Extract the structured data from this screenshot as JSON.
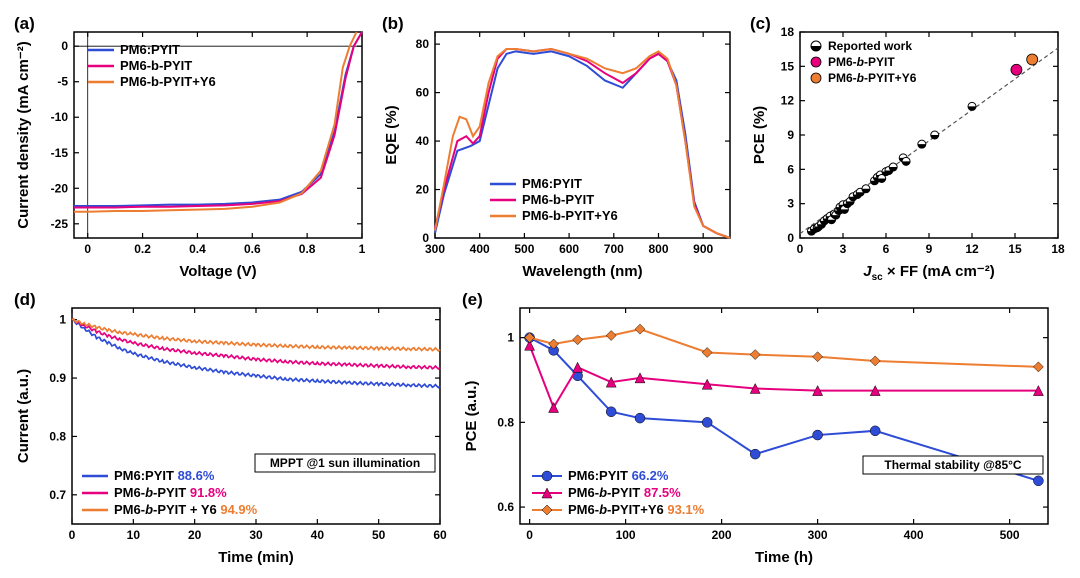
{
  "colors": {
    "s1": "#2E4CD6",
    "s2": "#E6007E",
    "s3": "#ED7D31",
    "axis": "#000000",
    "tick": "#000000",
    "text": "#000000",
    "reported": "#000000",
    "bg": "#ffffff"
  },
  "font": {
    "tick_size": 12,
    "label_size": 15,
    "legend_size": 13,
    "panel_label_size": 17,
    "weight_axis": "bold"
  },
  "panelA": {
    "label": "(a)",
    "type": "line",
    "xlabel": "Voltage (V)",
    "ylabel": "Current density (mA cm⁻²)",
    "xlim": [
      -0.05,
      1.0
    ],
    "ylim": [
      -27,
      2
    ],
    "xtick_step": 0.2,
    "xtick_start": 0.0,
    "ytick_step": 5,
    "ytick_start": -25,
    "series": [
      {
        "name": "PM6:PYIT",
        "color": "#2E4CD6",
        "pts": [
          [
            -0.05,
            -22.5
          ],
          [
            0.0,
            -22.5
          ],
          [
            0.1,
            -22.5
          ],
          [
            0.2,
            -22.4
          ],
          [
            0.3,
            -22.3
          ],
          [
            0.4,
            -22.3
          ],
          [
            0.5,
            -22.2
          ],
          [
            0.6,
            -22.0
          ],
          [
            0.7,
            -21.6
          ],
          [
            0.78,
            -20.5
          ],
          [
            0.85,
            -18.0
          ],
          [
            0.9,
            -12.0
          ],
          [
            0.94,
            -4.0
          ],
          [
            0.97,
            0
          ],
          [
            1.0,
            2
          ]
        ]
      },
      {
        "name": "PM6-b-PYIT",
        "color": "#E6007E",
        "pts": [
          [
            -0.05,
            -22.7
          ],
          [
            0.0,
            -22.7
          ],
          [
            0.1,
            -22.7
          ],
          [
            0.2,
            -22.6
          ],
          [
            0.3,
            -22.6
          ],
          [
            0.4,
            -22.5
          ],
          [
            0.5,
            -22.4
          ],
          [
            0.6,
            -22.2
          ],
          [
            0.7,
            -21.8
          ],
          [
            0.78,
            -20.8
          ],
          [
            0.85,
            -18.5
          ],
          [
            0.9,
            -12.5
          ],
          [
            0.94,
            -4.5
          ],
          [
            0.97,
            0
          ],
          [
            1.0,
            2
          ]
        ]
      },
      {
        "name": "PM6-b-PYIT+Y6",
        "color": "#ED7D31",
        "pts": [
          [
            -0.05,
            -23.3
          ],
          [
            0.0,
            -23.3
          ],
          [
            0.1,
            -23.2
          ],
          [
            0.2,
            -23.2
          ],
          [
            0.3,
            -23.1
          ],
          [
            0.4,
            -23.0
          ],
          [
            0.5,
            -22.9
          ],
          [
            0.6,
            -22.6
          ],
          [
            0.7,
            -22.0
          ],
          [
            0.78,
            -20.7
          ],
          [
            0.85,
            -17.5
          ],
          [
            0.9,
            -11.0
          ],
          [
            0.93,
            -3.0
          ],
          [
            0.955,
            0
          ],
          [
            0.98,
            2
          ]
        ]
      }
    ],
    "legend_pos": "top-left"
  },
  "panelB": {
    "label": "(b)",
    "type": "line",
    "xlabel": "Wavelength (nm)",
    "ylabel": "EQE (%)",
    "xlim": [
      300,
      960
    ],
    "ylim": [
      0,
      85
    ],
    "xtick_step": 100,
    "xtick_start": 300,
    "ytick_step": 20,
    "ytick_start": 0,
    "series": [
      {
        "name": "PM6:PYIT",
        "color": "#2E4CD6",
        "pts": [
          [
            300,
            2
          ],
          [
            320,
            18
          ],
          [
            350,
            36
          ],
          [
            380,
            38
          ],
          [
            400,
            40
          ],
          [
            420,
            55
          ],
          [
            440,
            70
          ],
          [
            460,
            76
          ],
          [
            480,
            77
          ],
          [
            520,
            76
          ],
          [
            560,
            77
          ],
          [
            600,
            75
          ],
          [
            640,
            71
          ],
          [
            680,
            65
          ],
          [
            720,
            62
          ],
          [
            750,
            68
          ],
          [
            780,
            74
          ],
          [
            800,
            76
          ],
          [
            820,
            73
          ],
          [
            840,
            65
          ],
          [
            860,
            43
          ],
          [
            880,
            15
          ],
          [
            900,
            5
          ],
          [
            930,
            2
          ],
          [
            960,
            0
          ]
        ]
      },
      {
        "name": "PM6-b-PYIT",
        "color": "#E6007E",
        "pts": [
          [
            300,
            4
          ],
          [
            320,
            20
          ],
          [
            350,
            40
          ],
          [
            370,
            42
          ],
          [
            385,
            39
          ],
          [
            400,
            42
          ],
          [
            420,
            60
          ],
          [
            440,
            74
          ],
          [
            460,
            78
          ],
          [
            480,
            78
          ],
          [
            520,
            77
          ],
          [
            560,
            78
          ],
          [
            600,
            76
          ],
          [
            640,
            73
          ],
          [
            680,
            68
          ],
          [
            720,
            64
          ],
          [
            750,
            68
          ],
          [
            780,
            74
          ],
          [
            800,
            76
          ],
          [
            820,
            73
          ],
          [
            840,
            63
          ],
          [
            860,
            40
          ],
          [
            880,
            14
          ],
          [
            900,
            5
          ],
          [
            930,
            2
          ],
          [
            960,
            0
          ]
        ]
      },
      {
        "name": "PM6-b-PYIT+Y6",
        "color": "#ED7D31",
        "pts": [
          [
            300,
            3
          ],
          [
            320,
            22
          ],
          [
            340,
            42
          ],
          [
            355,
            50
          ],
          [
            370,
            49
          ],
          [
            385,
            42
          ],
          [
            400,
            46
          ],
          [
            420,
            64
          ],
          [
            440,
            75
          ],
          [
            460,
            78
          ],
          [
            480,
            78
          ],
          [
            520,
            77
          ],
          [
            560,
            78
          ],
          [
            600,
            76
          ],
          [
            640,
            74
          ],
          [
            680,
            70
          ],
          [
            720,
            68
          ],
          [
            750,
            70
          ],
          [
            780,
            75
          ],
          [
            800,
            77
          ],
          [
            820,
            74
          ],
          [
            840,
            63
          ],
          [
            860,
            40
          ],
          [
            880,
            13
          ],
          [
            900,
            5
          ],
          [
            930,
            2
          ],
          [
            960,
            0
          ]
        ]
      }
    ],
    "legend_pos": "bottom-center"
  },
  "panelC": {
    "label": "(c)",
    "type": "scatter",
    "xlabel": "J_sc × FF (mA cm⁻²)",
    "ylabel": "PCE (%)",
    "xlim": [
      0,
      18
    ],
    "ylim": [
      0,
      18
    ],
    "xtick_step": 3,
    "xtick_start": 0,
    "ytick_step": 3,
    "ytick_start": 0,
    "fit_line": {
      "x0": 0,
      "y0": 0.38,
      "x1": 18,
      "y1": 16.6,
      "dash": "4 3",
      "color": "#555"
    },
    "reported": [
      [
        0.8,
        0.6
      ],
      [
        1.0,
        0.8
      ],
      [
        1.2,
        0.9
      ],
      [
        1.3,
        1.0
      ],
      [
        1.5,
        1.2
      ],
      [
        1.7,
        1.5
      ],
      [
        1.9,
        1.7
      ],
      [
        2.1,
        1.9
      ],
      [
        2.2,
        1.6
      ],
      [
        2.4,
        2.1
      ],
      [
        2.5,
        2.0
      ],
      [
        2.7,
        2.4
      ],
      [
        2.8,
        2.7
      ],
      [
        3.0,
        2.9
      ],
      [
        3.1,
        2.5
      ],
      [
        3.3,
        3.0
      ],
      [
        3.5,
        3.2
      ],
      [
        3.7,
        3.6
      ],
      [
        4.0,
        3.8
      ],
      [
        4.2,
        4.0
      ],
      [
        4.6,
        4.3
      ],
      [
        5.2,
        5.0
      ],
      [
        5.4,
        5.3
      ],
      [
        5.6,
        5.5
      ],
      [
        5.7,
        5.2
      ],
      [
        6.0,
        5.8
      ],
      [
        6.2,
        5.9
      ],
      [
        6.5,
        6.2
      ],
      [
        7.2,
        7.0
      ],
      [
        7.4,
        6.7
      ],
      [
        8.5,
        8.2
      ],
      [
        9.4,
        9.0
      ],
      [
        12.0,
        11.5
      ]
    ],
    "highlighted": [
      {
        "name": "PM6-b-PYIT",
        "color": "#E6007E",
        "pt": [
          15.1,
          14.7
        ]
      },
      {
        "name": "PM6-b-PYIT+Y6",
        "color": "#ED7D31",
        "pt": [
          16.2,
          15.6
        ]
      }
    ],
    "legend": [
      "Reported work",
      "PM6-b-PYIT",
      "PM6-b-PYIT+Y6"
    ],
    "legend_pos": "top-left"
  },
  "panelD": {
    "label": "(d)",
    "type": "line",
    "xlabel": "Time (min)",
    "ylabel": "Current (a.u.)",
    "xlim": [
      0,
      60
    ],
    "ylim": [
      0.65,
      1.02
    ],
    "xtick_step": 10,
    "xtick_start": 0,
    "ytick_step": 0.1,
    "ytick_start": 0.7,
    "box_text": "MPPT @1 sun illumination",
    "series": [
      {
        "name": "PM6:PYIT",
        "valcolor": "#2E4CD6",
        "val": "88.6%",
        "color": "#2E4CD6",
        "pts": [
          [
            0,
            1.0
          ],
          [
            2,
            0.985
          ],
          [
            4,
            0.97
          ],
          [
            6,
            0.96
          ],
          [
            8,
            0.95
          ],
          [
            10,
            0.942
          ],
          [
            15,
            0.928
          ],
          [
            20,
            0.918
          ],
          [
            25,
            0.91
          ],
          [
            30,
            0.904
          ],
          [
            35,
            0.898
          ],
          [
            40,
            0.895
          ],
          [
            45,
            0.892
          ],
          [
            50,
            0.89
          ],
          [
            55,
            0.888
          ],
          [
            60,
            0.886
          ]
        ]
      },
      {
        "name": "PM6-b-PYIT",
        "valcolor": "#E6007E",
        "val": "91.8%",
        "color": "#E6007E",
        "pts": [
          [
            0,
            1.0
          ],
          [
            2,
            0.99
          ],
          [
            4,
            0.98
          ],
          [
            6,
            0.972
          ],
          [
            8,
            0.966
          ],
          [
            10,
            0.96
          ],
          [
            15,
            0.95
          ],
          [
            20,
            0.943
          ],
          [
            25,
            0.938
          ],
          [
            30,
            0.932
          ],
          [
            35,
            0.928
          ],
          [
            40,
            0.925
          ],
          [
            45,
            0.923
          ],
          [
            50,
            0.921
          ],
          [
            55,
            0.919
          ],
          [
            60,
            0.918
          ]
        ]
      },
      {
        "name": "PM6-b-PYIT + Y6",
        "valcolor": "#ED7D31",
        "val": "94.9%",
        "color": "#ED7D31",
        "pts": [
          [
            0,
            1.0
          ],
          [
            2,
            0.993
          ],
          [
            4,
            0.987
          ],
          [
            6,
            0.982
          ],
          [
            8,
            0.978
          ],
          [
            10,
            0.975
          ],
          [
            15,
            0.968
          ],
          [
            20,
            0.963
          ],
          [
            25,
            0.96
          ],
          [
            30,
            0.957
          ],
          [
            35,
            0.955
          ],
          [
            40,
            0.953
          ],
          [
            45,
            0.952
          ],
          [
            50,
            0.951
          ],
          [
            55,
            0.95
          ],
          [
            60,
            0.949
          ]
        ]
      }
    ],
    "legend_pos": "bottom-left"
  },
  "panelE": {
    "label": "(e)",
    "type": "line+marker",
    "xlabel": "Time (h)",
    "ylabel": "PCE (a.u.)",
    "xlim": [
      -10,
      540
    ],
    "ylim": [
      0.56,
      1.07
    ],
    "xtick_step": 100,
    "xtick_start": 0,
    "ytick_step": 0.2,
    "ytick_start": 0.6,
    "box_text": "Thermal stability @85°C",
    "series": [
      {
        "name": "PM6:PYIT",
        "valcolor": "#2E4CD6",
        "val": "66.2%",
        "color": "#2E4CD6",
        "marker": "circle",
        "pts": [
          [
            0,
            1.0
          ],
          [
            25,
            0.97
          ],
          [
            50,
            0.91
          ],
          [
            85,
            0.825
          ],
          [
            115,
            0.81
          ],
          [
            185,
            0.8
          ],
          [
            235,
            0.725
          ],
          [
            300,
            0.77
          ],
          [
            360,
            0.78
          ],
          [
            530,
            0.662
          ]
        ]
      },
      {
        "name": "PM6-b-PYIT",
        "valcolor": "#E6007E",
        "val": "87.5%",
        "color": "#E6007E",
        "marker": "triangle",
        "pts": [
          [
            0,
            0.982
          ],
          [
            25,
            0.835
          ],
          [
            50,
            0.93
          ],
          [
            85,
            0.895
          ],
          [
            115,
            0.905
          ],
          [
            185,
            0.89
          ],
          [
            235,
            0.88
          ],
          [
            300,
            0.875
          ],
          [
            360,
            0.875
          ],
          [
            530,
            0.875
          ]
        ]
      },
      {
        "name": "PM6-b-PYIT+Y6",
        "valcolor": "#ED7D31",
        "val": "93.1%",
        "color": "#ED7D31",
        "marker": "diamond",
        "pts": [
          [
            0,
            1.0
          ],
          [
            25,
            0.985
          ],
          [
            50,
            0.995
          ],
          [
            85,
            1.005
          ],
          [
            115,
            1.02
          ],
          [
            185,
            0.965
          ],
          [
            235,
            0.96
          ],
          [
            300,
            0.955
          ],
          [
            360,
            0.945
          ],
          [
            530,
            0.931
          ]
        ]
      }
    ],
    "legend_pos": "bottom-left"
  }
}
